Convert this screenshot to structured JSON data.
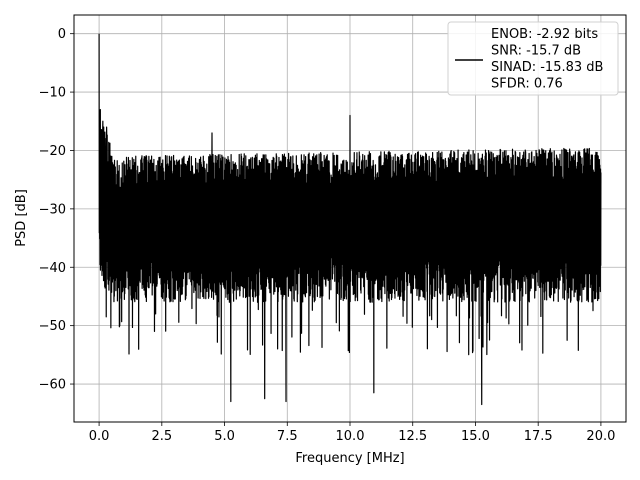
{
  "chart_data": {
    "type": "line",
    "title": "",
    "xlabel": "Frequency [MHz]",
    "ylabel": "PSD [dB]",
    "xlim": [
      -1.0,
      21.0
    ],
    "ylim": [
      -66.5,
      3.2
    ],
    "x_ticks": [
      0.0,
      2.5,
      5.0,
      7.5,
      10.0,
      12.5,
      15.0,
      17.5,
      20.0
    ],
    "x_tick_labels": [
      "0.0",
      "2.5",
      "5.0",
      "7.5",
      "10.0",
      "12.5",
      "15.0",
      "17.5",
      "20.0"
    ],
    "y_ticks": [
      0,
      -10,
      -20,
      -30,
      -40,
      -50,
      -60
    ],
    "y_tick_labels": [
      "0",
      "−10",
      "−20",
      "−30",
      "−40",
      "−50",
      "−60"
    ],
    "grid": true,
    "legend_position": "top-right",
    "line_color": "#000000",
    "series": [
      {
        "name": "ENOB: -2.92 bits\nSNR: -15.7 dB\nSINAD: -15.83 dB\nSFDR: 0.76",
        "x_range": [
          0.0,
          20.0
        ],
        "peak": {
          "x": 0.0,
          "y": 0.0
        },
        "noise_floor_envelope": {
          "upper": -21,
          "mean": -31,
          "lower": -42
        },
        "spurs": [
          {
            "x": 0.05,
            "y": -13
          },
          {
            "x": 0.15,
            "y": -15
          },
          {
            "x": 0.3,
            "y": -16
          },
          {
            "x": 4.5,
            "y": -17
          },
          {
            "x": 10.0,
            "y": -14
          },
          {
            "x": 5.25,
            "y": -63
          },
          {
            "x": 6.6,
            "y": -62.5
          },
          {
            "x": 7.45,
            "y": -63
          },
          {
            "x": 10.95,
            "y": -61.5
          },
          {
            "x": 15.25,
            "y": -63.5
          }
        ]
      }
    ],
    "legend_lines": [
      "ENOB: -2.92 bits",
      "SNR: -15.7 dB",
      "SINAD: -15.83 dB",
      "SFDR: 0.76"
    ]
  }
}
